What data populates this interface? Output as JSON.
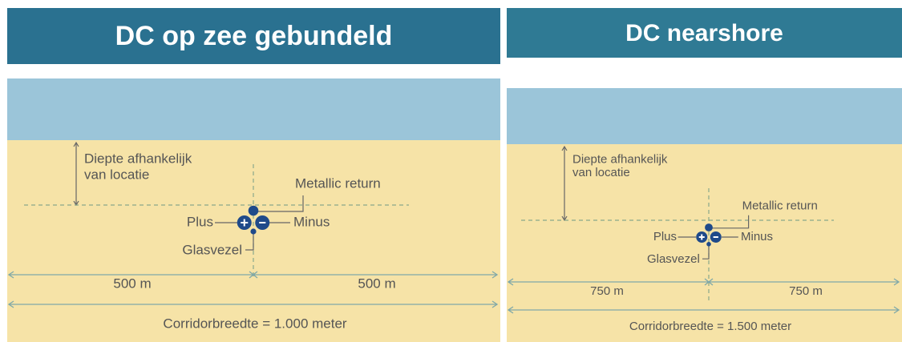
{
  "panels": [
    {
      "title": "DC op zee gebundeld",
      "depth_label": [
        "Diepte afhankelijk",
        "van locatie"
      ],
      "metallic_return": "Metallic return",
      "plus": "Plus",
      "minus": "Minus",
      "glasvezel": "Glasvezel",
      "half_width": [
        "500 m",
        "500 m"
      ],
      "corridor": "Corridorbreedte = 1.000 meter"
    },
    {
      "title": "DC nearshore",
      "depth_label": [
        "Diepte afhankelijk",
        "van locatie"
      ],
      "metallic_return": "Metallic return",
      "plus": "Plus",
      "minus": "Minus",
      "glasvezel": "Glasvezel",
      "half_width": [
        "750 m",
        "750 m"
      ],
      "corridor": "Corridorbreedte = 1.500 meter"
    }
  ]
}
